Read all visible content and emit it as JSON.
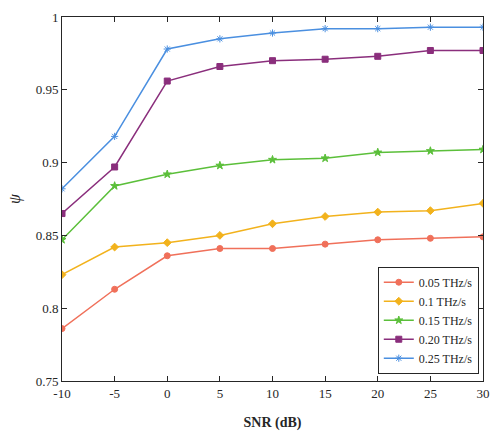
{
  "chart_data": {
    "type": "line",
    "x_label": "SNR (dB)",
    "y_label": "ψ",
    "x": [
      -10,
      -5,
      0,
      5,
      10,
      15,
      20,
      25,
      30
    ],
    "xlim": [
      -10,
      30
    ],
    "xticks": [
      -10,
      -5,
      0,
      5,
      10,
      15,
      20,
      25,
      30
    ],
    "ylim": [
      0.75,
      1
    ],
    "yticks": [
      0.75,
      0.8,
      0.85,
      0.9,
      0.95,
      1
    ],
    "grid": false,
    "legend": "lower right",
    "series": [
      {
        "name": "0.05 THz/s",
        "color": "#f0705a",
        "marker": "circle",
        "values": [
          0.786,
          0.813,
          0.836,
          0.841,
          0.841,
          0.844,
          0.847,
          0.848,
          0.849
        ]
      },
      {
        "name": "0.1 THz/s",
        "color": "#f2b21c",
        "marker": "diamond",
        "values": [
          0.823,
          0.842,
          0.845,
          0.85,
          0.858,
          0.863,
          0.866,
          0.867,
          0.872
        ]
      },
      {
        "name": "0.15 THz/s",
        "color": "#5bbf3a",
        "marker": "star",
        "values": [
          0.847,
          0.884,
          0.892,
          0.898,
          0.902,
          0.903,
          0.907,
          0.908,
          0.909
        ]
      },
      {
        "name": "0.20 THz/s",
        "color": "#8a2e7c",
        "marker": "square",
        "values": [
          0.865,
          0.897,
          0.956,
          0.966,
          0.97,
          0.971,
          0.973,
          0.977,
          0.977
        ]
      },
      {
        "name": "0.25 THz/s",
        "color": "#4a8fe0",
        "marker": "asterisk",
        "values": [
          0.882,
          0.918,
          0.978,
          0.985,
          0.989,
          0.992,
          0.992,
          0.993,
          0.993
        ]
      }
    ]
  }
}
